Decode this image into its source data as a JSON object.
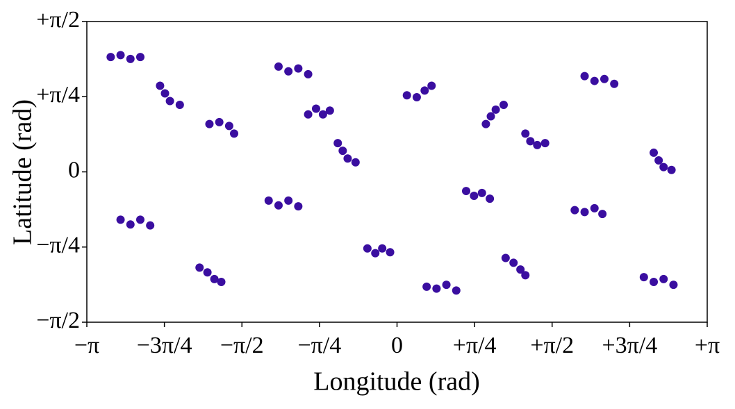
{
  "chart_data": {
    "type": "scatter",
    "x_label": "Longitude (rad)",
    "y_label": "Latitude (rad)",
    "xlim": [
      -3.1416,
      3.1416
    ],
    "ylim": [
      -1.5708,
      1.5708
    ],
    "xticks": [
      {
        "value": -3.1416,
        "label": "−π"
      },
      {
        "value": -2.3562,
        "label": "−3π/4"
      },
      {
        "value": -1.5708,
        "label": "−π/2"
      },
      {
        "value": -0.7854,
        "label": "−π/4"
      },
      0,
      {
        "value": 0.7854,
        "label": "+π/4"
      },
      {
        "value": 1.5708,
        "label": "+π/2"
      },
      {
        "value": 2.3562,
        "label": "+3π/4"
      },
      {
        "value": 3.1416,
        "label": "+π"
      }
    ],
    "yticks": [
      {
        "value": -1.5708,
        "label": "−π/2"
      },
      {
        "value": -0.7854,
        "label": "−π/4"
      },
      0,
      {
        "value": 0.7854,
        "label": "+π/4"
      },
      {
        "value": 1.5708,
        "label": "+π/2"
      }
    ],
    "series": [
      {
        "color": "#3a0ea0",
        "x": [
          -2.9,
          -2.8,
          -2.7,
          -2.6,
          -2.4,
          -2.35,
          -2.3,
          -2.2,
          -1.9,
          -1.8,
          -1.7,
          -1.65,
          -1.2,
          -1.1,
          -1.0,
          -0.9,
          -0.6,
          -0.55,
          -0.5,
          -0.42,
          0.1,
          0.2,
          0.28,
          0.35,
          0.7,
          0.78,
          0.86,
          0.94,
          1.3,
          1.35,
          1.42,
          1.5,
          1.9,
          2.0,
          2.1,
          2.2,
          2.6,
          2.65,
          2.7,
          2.78,
          -2.8,
          -2.7,
          -2.6,
          -2.5,
          -2.0,
          -1.92,
          -1.85,
          -1.78,
          -1.3,
          -1.2,
          -1.1,
          -1.0,
          -0.3,
          -0.22,
          -0.15,
          -0.07,
          0.3,
          0.4,
          0.5,
          0.6,
          1.1,
          1.18,
          1.25,
          1.3,
          1.8,
          1.9,
          2.0,
          2.08,
          2.5,
          2.6,
          2.7,
          2.8,
          -0.9,
          -0.82,
          -0.75,
          -0.68,
          0.9,
          0.95,
          1.0,
          1.08
        ],
        "y": [
          1.2,
          1.22,
          1.18,
          1.2,
          0.9,
          0.82,
          0.74,
          0.7,
          0.5,
          0.52,
          0.48,
          0.4,
          1.1,
          1.05,
          1.08,
          1.02,
          0.3,
          0.22,
          0.14,
          0.1,
          0.8,
          0.78,
          0.85,
          0.9,
          -0.2,
          -0.25,
          -0.22,
          -0.28,
          0.4,
          0.32,
          0.28,
          0.3,
          1.0,
          0.95,
          0.97,
          0.92,
          0.2,
          0.12,
          0.05,
          0.02,
          -0.5,
          -0.55,
          -0.5,
          -0.56,
          -1.0,
          -1.05,
          -1.12,
          -1.15,
          -0.3,
          -0.35,
          -0.3,
          -0.36,
          -0.8,
          -0.85,
          -0.8,
          -0.84,
          -1.2,
          -1.22,
          -1.18,
          -1.24,
          -0.9,
          -0.95,
          -1.02,
          -1.08,
          -0.4,
          -0.42,
          -0.38,
          -0.44,
          -1.1,
          -1.15,
          -1.12,
          -1.18,
          0.6,
          0.66,
          0.6,
          0.64,
          0.5,
          0.58,
          0.65,
          0.7
        ]
      }
    ]
  }
}
